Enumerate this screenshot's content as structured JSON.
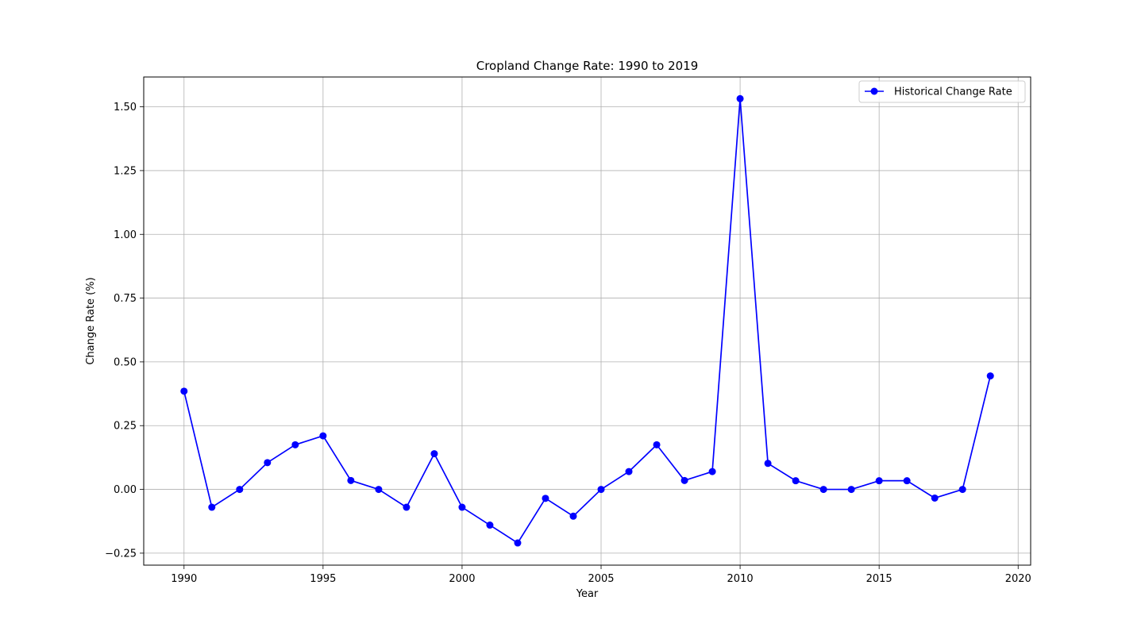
{
  "chart_data": {
    "type": "line",
    "title": "Cropland Change Rate: 1990 to 2019",
    "xlabel": "Year",
    "ylabel": "Change Rate (%)",
    "xlim": [
      1988.55,
      2020.45
    ],
    "ylim": [
      -0.297,
      1.617
    ],
    "xticks": [
      1990,
      1995,
      2000,
      2005,
      2010,
      2015,
      2020
    ],
    "yticks": [
      -0.25,
      0.0,
      0.25,
      0.5,
      0.75,
      1.0,
      1.25,
      1.5
    ],
    "ytick_labels": [
      "−0.25",
      "0.00",
      "0.25",
      "0.50",
      "0.75",
      "1.00",
      "1.25",
      "1.50"
    ],
    "grid": true,
    "legend": {
      "position": "top-right"
    },
    "series": [
      {
        "name": "Historical Change Rate",
        "color": "#0000ff",
        "marker": "circle",
        "x": [
          1990,
          1991,
          1992,
          1993,
          1994,
          1995,
          1996,
          1997,
          1998,
          1999,
          2000,
          2001,
          2002,
          2003,
          2004,
          2005,
          2006,
          2007,
          2008,
          2009,
          2010,
          2011,
          2012,
          2013,
          2014,
          2015,
          2016,
          2017,
          2018,
          2019
        ],
        "values": [
          0.385,
          -0.07,
          0.0,
          0.105,
          0.175,
          0.21,
          0.035,
          0.0,
          -0.07,
          0.14,
          -0.07,
          -0.14,
          -0.21,
          -0.035,
          -0.105,
          0.0,
          0.07,
          0.175,
          0.035,
          0.07,
          1.532,
          0.102,
          0.034,
          0.0,
          0.0,
          0.034,
          0.034,
          -0.034,
          0.0,
          0.445
        ]
      }
    ]
  }
}
